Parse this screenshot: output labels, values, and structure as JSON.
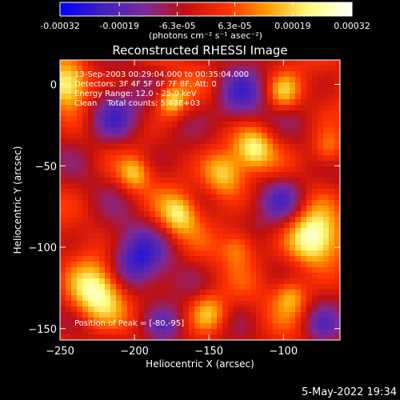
{
  "window": {
    "date_stamp": "5-May-2022 19:34"
  },
  "colorbar": {
    "tick_labels": [
      "-0.00032",
      "-0.00019",
      "-6.3e-05",
      "6.3e-05",
      "0.00019",
      "0.00032"
    ],
    "tick_values": [
      -0.00032,
      -0.00019,
      -6.3e-05,
      6.3e-05,
      0.00019,
      0.00032
    ],
    "range": [
      -0.00032,
      0.00032
    ],
    "units_label": "(photons cm⁻² s⁻¹ asec⁻²)",
    "colormap": [
      "#0000ff",
      "#4020c0",
      "#7a2a9a",
      "#c01010",
      "#ff3000",
      "#ffa000",
      "#ffff80",
      "#ffffff"
    ]
  },
  "info_lines": [
    "13-Sep-2003 00:29:04.000 to 00:35:04.000",
    "Detectors: 3F 4F 5F 6F 7F 8F, Att: 0",
    "Energy Range: 12.0 - 25.0 keV",
    "Clean    Total counts: 5.43E+03"
  ],
  "peak_label": "Position of Peak = [-80,-95]",
  "chart_data": {
    "type": "heatmap",
    "title": "Reconstructed RHESSI Image",
    "xlabel": "Heliocentric X (arcsec)",
    "ylabel": "Heliocentric Y (arcsec)",
    "xlim": [
      -250,
      -62
    ],
    "ylim": [
      -157,
      15
    ],
    "x_ticks": [
      -250,
      -200,
      -150,
      -100
    ],
    "x_tick_labels": [
      "−250",
      "−200",
      "−150",
      "−100"
    ],
    "y_ticks": [
      0,
      -50,
      -100,
      -150
    ],
    "y_tick_labels": [
      "0",
      "−50",
      "−100",
      "−150"
    ],
    "peak": [
      -80,
      -95
    ],
    "grid": false,
    "sources": [
      {
        "x": -80,
        "y": -95,
        "amplitude": 1.0,
        "sigma": 12
      },
      {
        "x": -225,
        "y": -128,
        "amplitude": 0.95,
        "sigma": 13
      },
      {
        "x": -245,
        "y": 0,
        "amplitude": 0.8,
        "sigma": 10
      },
      {
        "x": -140,
        "y": -55,
        "amplitude": 0.75,
        "sigma": 10
      },
      {
        "x": -120,
        "y": -40,
        "amplitude": 0.7,
        "sigma": 9
      },
      {
        "x": -175,
        "y": -10,
        "amplitude": 0.7,
        "sigma": 7
      },
      {
        "x": -100,
        "y": -5,
        "amplitude": 0.6,
        "sigma": 8
      },
      {
        "x": -170,
        "y": -80,
        "amplitude": 0.65,
        "sigma": 9
      },
      {
        "x": -150,
        "y": -140,
        "amplitude": 0.6,
        "sigma": 9
      },
      {
        "x": -95,
        "y": -130,
        "amplitude": 0.55,
        "sigma": 8
      },
      {
        "x": -200,
        "y": -55,
        "amplitude": 0.5,
        "sigma": 7
      },
      {
        "x": -130,
        "y": -100,
        "amplitude": 0.45,
        "sigma": 8
      },
      {
        "x": -70,
        "y": -40,
        "amplitude": 0.5,
        "sigma": 8
      },
      {
        "x": -200,
        "y": -110,
        "amplitude": -0.7,
        "sigma": 14
      },
      {
        "x": -130,
        "y": -10,
        "amplitude": -0.6,
        "sigma": 12
      },
      {
        "x": -215,
        "y": -20,
        "amplitude": -0.6,
        "sigma": 12
      },
      {
        "x": -100,
        "y": -70,
        "amplitude": -0.55,
        "sigma": 11
      },
      {
        "x": -180,
        "y": -150,
        "amplitude": -0.5,
        "sigma": 10
      },
      {
        "x": -75,
        "y": -150,
        "amplitude": -0.4,
        "sigma": 9
      }
    ]
  }
}
